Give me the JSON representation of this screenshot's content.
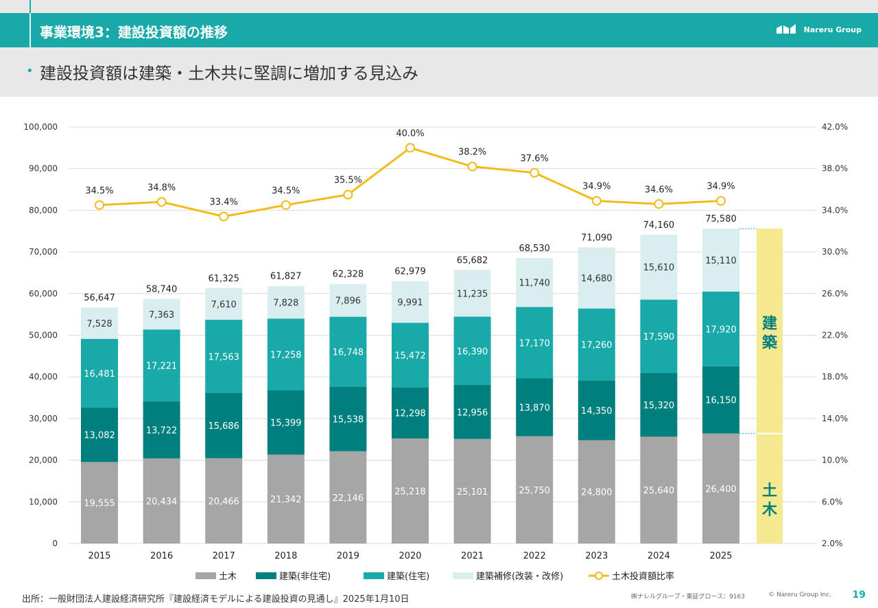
{
  "header": {
    "title": "事業環境3：建設投資額の推移",
    "brand": "Nareru Group"
  },
  "subtitle": "建設投資額は建築・土木共に堅調に増加する見込み",
  "chart_data": {
    "type": "bar",
    "stacked": true,
    "categories": [
      "2015",
      "2016",
      "2017",
      "2018",
      "2019",
      "2020",
      "2021",
      "2022",
      "2023",
      "2024",
      "2025"
    ],
    "series": [
      {
        "name": "土木",
        "color": "#a6a6a6",
        "values": [
          19555,
          20434,
          20466,
          21342,
          22146,
          25218,
          25101,
          25750,
          24800,
          25640,
          26400
        ]
      },
      {
        "name": "建築(非住宅)",
        "color": "#007f7f",
        "values": [
          13082,
          13722,
          15686,
          15399,
          15538,
          12298,
          12956,
          13870,
          14350,
          15320,
          16150
        ]
      },
      {
        "name": "建築(住宅)",
        "color": "#19a9a9",
        "values": [
          16481,
          17221,
          17563,
          17258,
          16748,
          15472,
          16390,
          17170,
          17260,
          17590,
          17920
        ]
      },
      {
        "name": "建築補修(改装・改修)",
        "color": "#daeef0",
        "values": [
          7528,
          7363,
          7610,
          7828,
          7896,
          9991,
          11235,
          11740,
          14680,
          15610,
          15110
        ]
      }
    ],
    "totals": [
      56647,
      58740,
      61325,
      61827,
      62328,
      62979,
      65682,
      68530,
      71090,
      74160,
      75580
    ],
    "line": {
      "name": "土木投資額比率",
      "color": "#f2bb1a",
      "values": [
        34.5,
        34.8,
        33.4,
        34.5,
        35.5,
        40.0,
        38.2,
        37.6,
        34.9,
        34.6,
        34.9
      ]
    },
    "y_left": {
      "min": 0,
      "max": 100000,
      "ticks": [
        "0",
        "10,000",
        "20,000",
        "30,000",
        "40,000",
        "50,000",
        "60,000",
        "70,000",
        "80,000",
        "90,000",
        "100,000"
      ]
    },
    "y_right": {
      "min": 2.0,
      "max": 42.0,
      "ticks": [
        "2.0%",
        "6.0%",
        "10.0%",
        "14.0%",
        "18.0%",
        "22.0%",
        "26.0%",
        "30.0%",
        "34.0%",
        "38.0%",
        "42.0%"
      ]
    },
    "grid": true,
    "legend": "bottom",
    "side_labels": {
      "kenchiku": "建\n築",
      "doboku": "土\n木",
      "color": "#f5e98f",
      "text_color": "#007f7f"
    }
  },
  "source": "出所：一般財団法人建設経済研究所『建設経済モデルによる建設投資の見通し』2025年1月10日",
  "footer": {
    "company": "㈱ナレルグループ・東証グロース：9163",
    "copyright": "© Nareru Group Inc.",
    "page": "19"
  }
}
